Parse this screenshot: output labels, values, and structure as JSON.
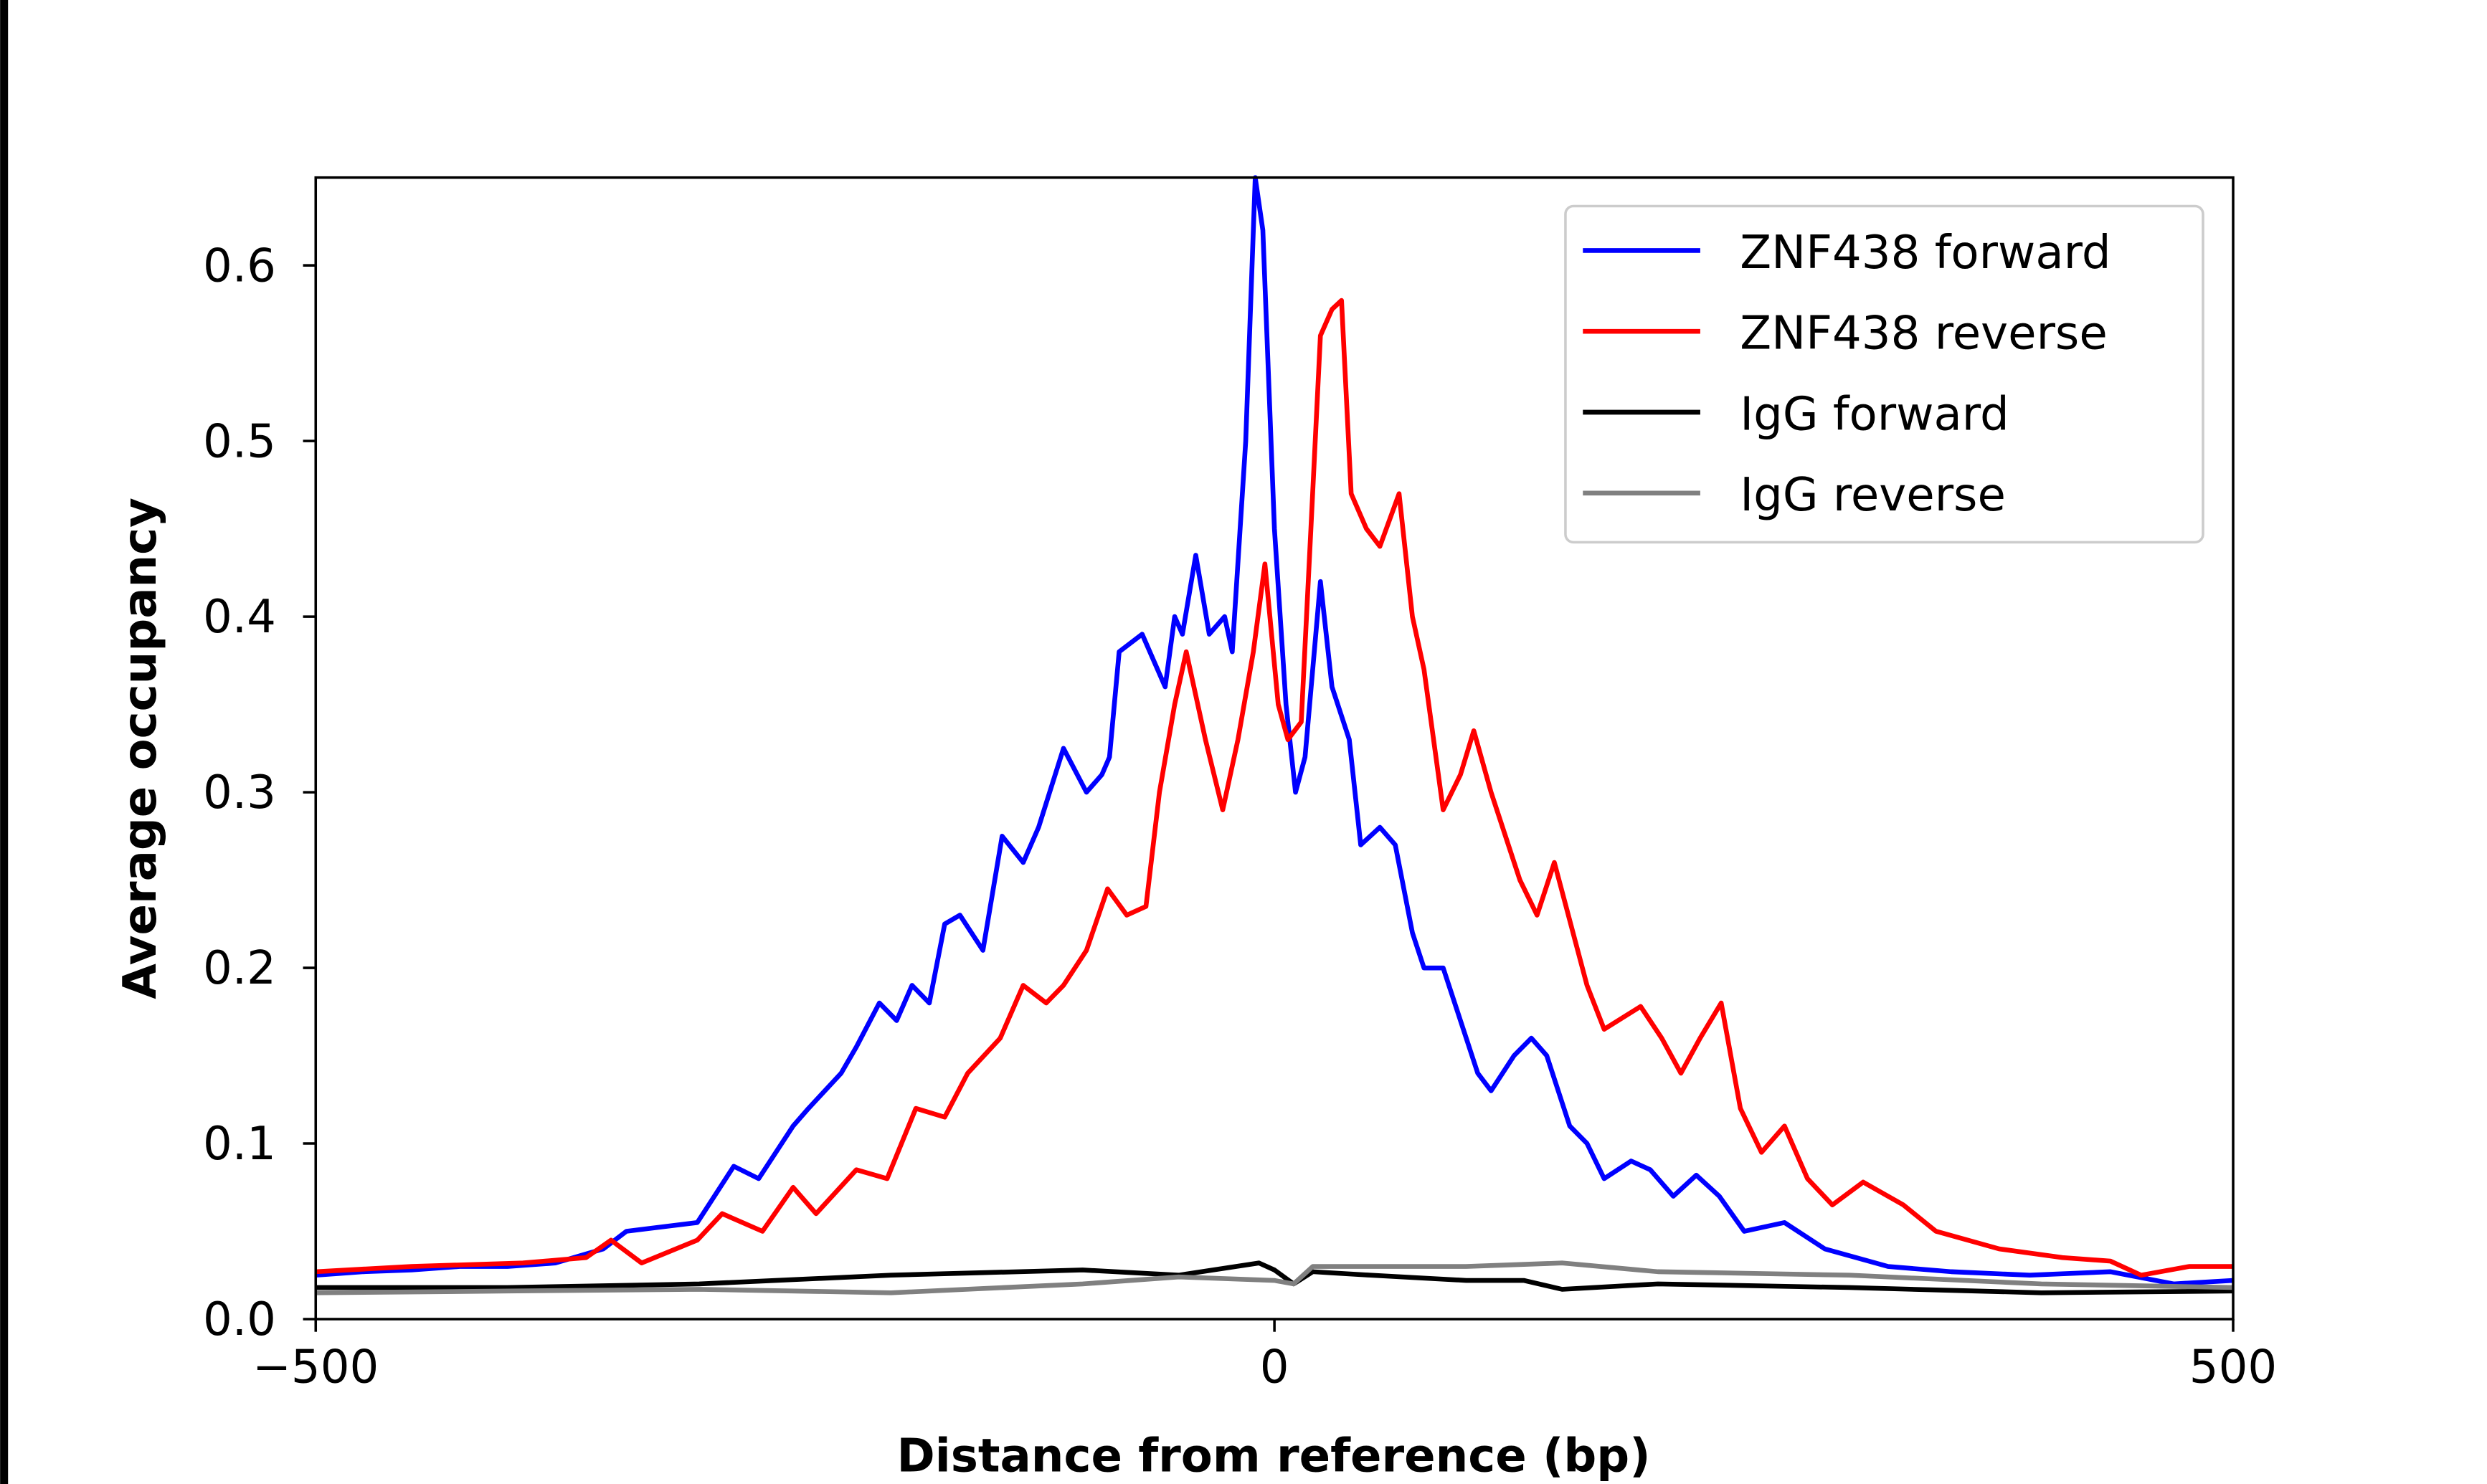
{
  "chart_data": {
    "type": "line",
    "xlabel": "Distance from reference (bp)",
    "ylabel": "Average occupancy",
    "xlim": [
      -500,
      500
    ],
    "ylim": [
      0,
      0.65
    ],
    "xticks": [
      -500,
      0,
      500
    ],
    "xtick_labels": [
      "−500",
      "0",
      "500"
    ],
    "yticks": [
      0.0,
      0.1,
      0.2,
      0.3,
      0.4,
      0.5,
      0.6
    ],
    "ytick_labels": [
      "0.0",
      "0.1",
      "0.2",
      "0.3",
      "0.4",
      "0.5",
      "0.6"
    ],
    "grid": false,
    "legend_position": "top-right",
    "series": [
      {
        "name": "ZNF438 forward",
        "color": "#0000ff",
        "x": [
          -500,
          -475,
          -450,
          -425,
          -400,
          -375,
          -350,
          -338,
          -301,
          -282,
          -269,
          -251,
          -243,
          -226,
          -218,
          -206,
          -197,
          -189,
          -180,
          -172,
          -164,
          -152,
          -142,
          -131,
          -123,
          -110,
          -98,
          -90,
          -86,
          -81,
          -69,
          -57,
          -52,
          -48,
          -41,
          -34,
          -26,
          -22,
          -15,
          -10,
          -6,
          0,
          6,
          11,
          16,
          24,
          30,
          39,
          45,
          55,
          63,
          72,
          78,
          88,
          97,
          106,
          113,
          125,
          134,
          142,
          154,
          163,
          172,
          186,
          196,
          208,
          220,
          232,
          245,
          266,
          287,
          320,
          353,
          394,
          436,
          469,
          500
        ],
        "y": [
          0.025,
          0.027,
          0.028,
          0.03,
          0.03,
          0.032,
          0.04,
          0.05,
          0.055,
          0.087,
          0.08,
          0.11,
          0.12,
          0.14,
          0.155,
          0.18,
          0.17,
          0.19,
          0.18,
          0.225,
          0.23,
          0.21,
          0.275,
          0.26,
          0.28,
          0.325,
          0.3,
          0.31,
          0.32,
          0.38,
          0.39,
          0.36,
          0.4,
          0.39,
          0.435,
          0.39,
          0.4,
          0.38,
          0.5,
          0.65,
          0.62,
          0.45,
          0.35,
          0.3,
          0.32,
          0.42,
          0.36,
          0.33,
          0.27,
          0.28,
          0.27,
          0.22,
          0.2,
          0.2,
          0.17,
          0.14,
          0.13,
          0.15,
          0.16,
          0.15,
          0.11,
          0.1,
          0.08,
          0.09,
          0.085,
          0.07,
          0.082,
          0.07,
          0.05,
          0.055,
          0.04,
          0.03,
          0.027,
          0.025,
          0.027,
          0.02,
          0.022
        ]
      },
      {
        "name": "ZNF438 reverse",
        "color": "#ff0000",
        "x": [
          -500,
          -450,
          -392,
          -359,
          -346,
          -330,
          -301,
          -288,
          -267,
          -251,
          -239,
          -218,
          -202,
          -187,
          -172,
          -160,
          -143,
          -131,
          -119,
          -110,
          -98,
          -87,
          -77,
          -67,
          -60,
          -52,
          -46,
          -36,
          -27,
          -19,
          -11,
          -5,
          2,
          7,
          14,
          19,
          24,
          30,
          35,
          40,
          48,
          55,
          65,
          72,
          78,
          88,
          97,
          104,
          113,
          122,
          128,
          137,
          146,
          163,
          172,
          191,
          202,
          212,
          222,
          233,
          243,
          254,
          266,
          278,
          291,
          307,
          328,
          345,
          378,
          411,
          436,
          452,
          477,
          500
        ],
        "y": [
          0.027,
          0.03,
          0.032,
          0.035,
          0.045,
          0.032,
          0.045,
          0.06,
          0.05,
          0.075,
          0.06,
          0.085,
          0.08,
          0.12,
          0.115,
          0.14,
          0.16,
          0.19,
          0.18,
          0.19,
          0.21,
          0.245,
          0.23,
          0.235,
          0.3,
          0.35,
          0.38,
          0.33,
          0.29,
          0.33,
          0.38,
          0.43,
          0.35,
          0.33,
          0.34,
          0.45,
          0.56,
          0.575,
          0.58,
          0.47,
          0.45,
          0.44,
          0.47,
          0.4,
          0.37,
          0.29,
          0.31,
          0.335,
          0.3,
          0.27,
          0.25,
          0.23,
          0.26,
          0.19,
          0.165,
          0.178,
          0.16,
          0.14,
          0.16,
          0.18,
          0.12,
          0.095,
          0.11,
          0.08,
          0.065,
          0.078,
          0.065,
          0.05,
          0.04,
          0.035,
          0.033,
          0.025,
          0.03,
          0.03
        ]
      },
      {
        "name": "IgG forward",
        "color": "#000000",
        "x": [
          -500,
          -400,
          -300,
          -200,
          -100,
          -50,
          -8,
          0,
          10,
          20,
          50,
          100,
          130,
          150,
          200,
          300,
          400,
          500
        ],
        "y": [
          0.018,
          0.018,
          0.02,
          0.025,
          0.028,
          0.025,
          0.032,
          0.028,
          0.02,
          0.027,
          0.025,
          0.022,
          0.022,
          0.017,
          0.02,
          0.018,
          0.015,
          0.016
        ]
      },
      {
        "name": "IgG reverse",
        "color": "#808080",
        "x": [
          -500,
          -400,
          -300,
          -200,
          -100,
          -50,
          0,
          10,
          20,
          50,
          100,
          150,
          200,
          300,
          400,
          500
        ],
        "y": [
          0.015,
          0.016,
          0.017,
          0.015,
          0.02,
          0.024,
          0.022,
          0.02,
          0.03,
          0.03,
          0.03,
          0.032,
          0.027,
          0.025,
          0.02,
          0.018
        ]
      }
    ]
  }
}
